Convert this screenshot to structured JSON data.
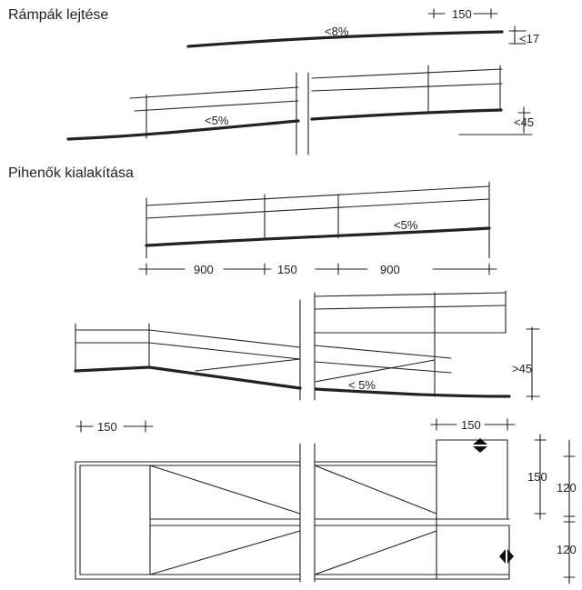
{
  "headings": {
    "ramp_slopes": "Rámpák lejtése",
    "landings": "Pihenők kialakítása"
  },
  "labels": {
    "top_slope": "<8%",
    "top_width": "150",
    "top_rise": "<17",
    "ramp2_slope": "<5%",
    "ramp2_rise": "<45",
    "landing_slope": "<5%",
    "dim_900_left": "900",
    "dim_150_mid": "150",
    "dim_900_right": "900",
    "switch_rise": ">45",
    "switch_slope": "< 5%",
    "plan_150_left": "150",
    "plan_150_right": "150",
    "plan_150_vertical": "150",
    "plan_120_upper": "120",
    "plan_120_lower": "120"
  }
}
